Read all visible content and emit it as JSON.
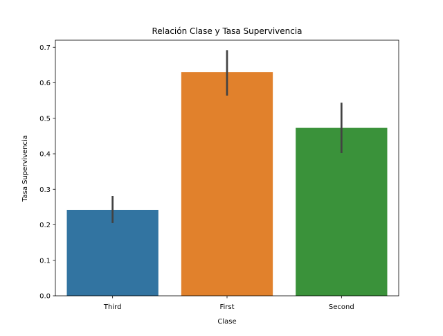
{
  "chart_data": {
    "type": "bar",
    "title": "Relación Clase y Tasa Supervivencia",
    "xlabel": "Clase",
    "ylabel": "Tasa Supervivencia",
    "categories": [
      "Third",
      "First",
      "Second"
    ],
    "values": [
      0.242,
      0.63,
      0.473
    ],
    "error_low": [
      0.205,
      0.564,
      0.402
    ],
    "error_high": [
      0.281,
      0.692,
      0.544
    ],
    "colors": [
      "#3274a1",
      "#e1812c",
      "#3a923a"
    ],
    "error_color": "#424242",
    "ylim": [
      0,
      0.72
    ],
    "yticks": [
      0.0,
      0.1,
      0.2,
      0.3,
      0.4,
      0.5,
      0.6,
      0.7
    ],
    "ytick_labels": [
      "0.0",
      "0.1",
      "0.2",
      "0.3",
      "0.4",
      "0.5",
      "0.6",
      "0.7"
    ],
    "grid": false,
    "legend": false
  }
}
